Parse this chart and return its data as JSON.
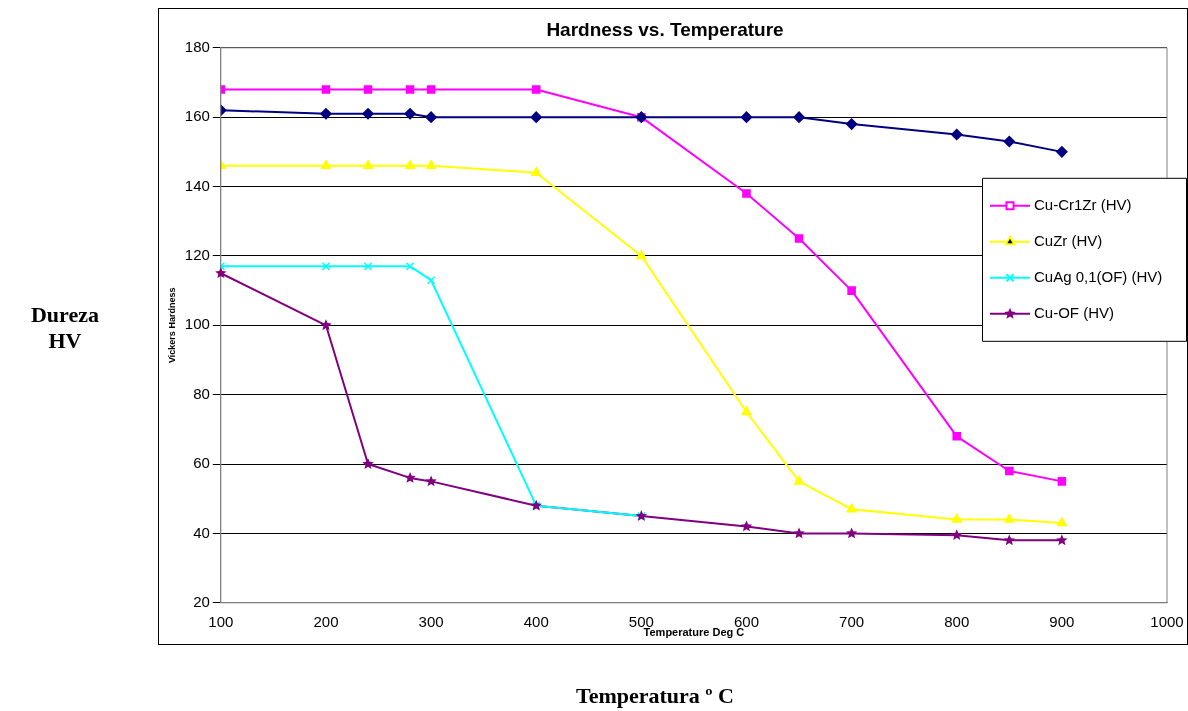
{
  "chart_data": {
    "type": "line",
    "title": "Hardness vs. Temperature",
    "xlabel": "Temperature Deg C",
    "ylabel": "Vickers Hardness",
    "annotations": [
      "Dureza HV",
      "Temperatura º C"
    ],
    "xlim": [
      100,
      1000
    ],
    "xticks": [
      100,
      200,
      300,
      400,
      500,
      600,
      700,
      800,
      900,
      1000
    ],
    "ylim": [
      20,
      180
    ],
    "yticks": [
      20,
      40,
      60,
      80,
      100,
      120,
      140,
      160,
      180
    ],
    "grid": "y",
    "legend": "right",
    "line_style": "solid",
    "series": [
      {
        "color": "#000080",
        "marker": "diamond",
        "x": [
          100,
          200,
          240,
          280,
          300,
          400,
          500,
          600,
          650,
          700,
          800,
          850,
          900
        ],
        "values": [
          162,
          161,
          161,
          161,
          160,
          160,
          160,
          160,
          160,
          158,
          155,
          153,
          150
        ]
      },
      {
        "name": "Cu-Cr1Zr (HV)",
        "color": "#ff00ff",
        "marker": "square",
        "x": [
          100,
          200,
          240,
          280,
          300,
          400,
          500,
          600,
          650,
          700,
          800,
          850,
          900
        ],
        "values": [
          168,
          168,
          168,
          168,
          168,
          168,
          160,
          138,
          125,
          110,
          68,
          58,
          55
        ]
      },
      {
        "name": "CuZr (HV)",
        "color": "#ffff00",
        "marker": "triangle",
        "x": [
          100,
          200,
          240,
          280,
          300,
          400,
          500,
          600,
          650,
          700,
          800,
          850,
          900
        ],
        "values": [
          146,
          146,
          146,
          146,
          146,
          144,
          120,
          75,
          55,
          47,
          44,
          44,
          43
        ]
      },
      {
        "name": "CuAg 0,1(OF) (HV)",
        "color": "#00ffff",
        "marker": "cross",
        "x": [
          100,
          200,
          240,
          280,
          300,
          400,
          500
        ],
        "values": [
          117,
          117,
          117,
          117,
          113,
          48,
          45
        ]
      },
      {
        "name": "Cu-OF (HV)",
        "color": "#800080",
        "marker": "star",
        "x": [
          100,
          200,
          240,
          280,
          300,
          400,
          500,
          600,
          650,
          700,
          800,
          850,
          900
        ],
        "values": [
          115,
          100,
          60,
          56,
          55,
          48,
          45,
          42,
          40,
          40,
          39.5,
          38,
          38
        ]
      }
    ]
  }
}
